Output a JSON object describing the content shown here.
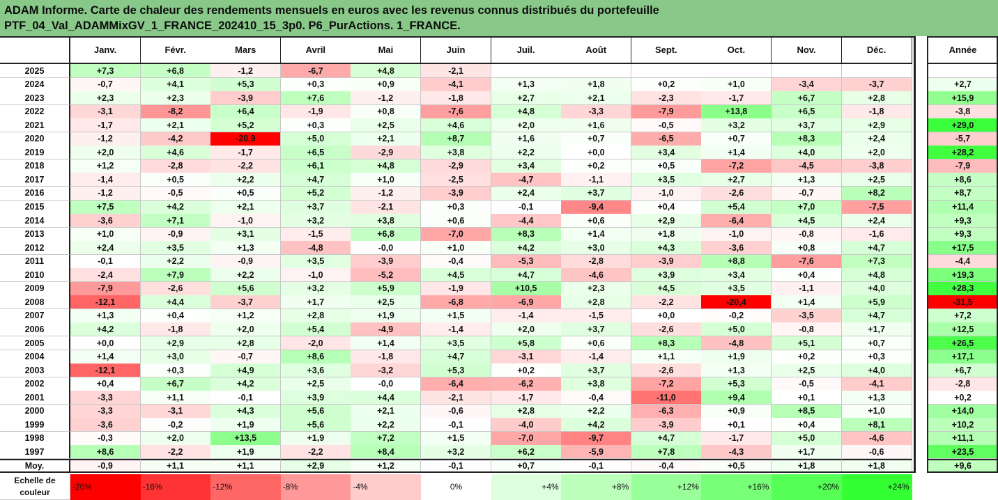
{
  "title_lines": [
    "ADAM Informe. Carte de chaleur des rendements mensuels en euros avec les revenus connus distribués du portefeuille",
    "PTF_04_Val_ADAMMixGV_1_FRANCE_202410_15_3p0. P6_PurActions. 1_FRANCE."
  ],
  "colors": {
    "title_bg": "#88c888",
    "negative_max": "#ff0000",
    "positive_max": "#33ff33",
    "neutral": "#ffffff"
  },
  "chart_data": {
    "type": "heatmap",
    "columns": [
      "Janv.",
      "Févr.",
      "Mars",
      "Avril",
      "Mai",
      "Juin",
      "Juil.",
      "Août",
      "Sept.",
      "Oct.",
      "Nov.",
      "Déc."
    ],
    "year_column": "Année",
    "rows": [
      {
        "year": "2025",
        "values": [
          "+7,3",
          "+6,8",
          "-1,2",
          "-6,7",
          "+4,8",
          "-2,1",
          "",
          "",
          "",
          "",
          "",
          ""
        ],
        "annual": ""
      },
      {
        "year": "2024",
        "values": [
          "-0,7",
          "+4,1",
          "+5,3",
          "+0,3",
          "+0,9",
          "-4,1",
          "+1,3",
          "+1,8",
          "+0,2",
          "+1,0",
          "-3,4",
          "-3,7"
        ],
        "annual": "+2,7"
      },
      {
        "year": "2023",
        "values": [
          "+2,3",
          "+2,3",
          "-3,9",
          "+7,6",
          "-1,2",
          "-1,8",
          "+2,7",
          "+2,1",
          "-2,3",
          "-1,7",
          "+6,7",
          "+2,8"
        ],
        "annual": "+15,9"
      },
      {
        "year": "2022",
        "values": [
          "-3,1",
          "-8,2",
          "+6,4",
          "-1,9",
          "+0,8",
          "-7,6",
          "+4,8",
          "-3,3",
          "-7,9",
          "+13,8",
          "+6,5",
          "-1,8"
        ],
        "annual": "-3,8"
      },
      {
        "year": "2021",
        "values": [
          "-1,7",
          "+2,1",
          "+5,2",
          "+0,3",
          "+2,5",
          "+4,6",
          "+2,0",
          "+1,6",
          "-0,5",
          "+3,2",
          "+3,7",
          "+2,9"
        ],
        "annual": "+29,0"
      },
      {
        "year": "2020",
        "values": [
          "-1,2",
          "-4,2",
          "-20,9",
          "+5,0",
          "+2,1",
          "+8,7",
          "+1,6",
          "+0,7",
          "-6,5",
          "+0,7",
          "+8,3",
          "+2,4"
        ],
        "annual": "-5,7"
      },
      {
        "year": "2019",
        "values": [
          "+2,0",
          "+4,6",
          "-1,7",
          "+6,5",
          "-2,9",
          "+3,8",
          "+2,2",
          "+0,0",
          "+3,4",
          "+1,4",
          "+4,0",
          "+2,0"
        ],
        "annual": "+28,2"
      },
      {
        "year": "2018",
        "values": [
          "+1,2",
          "-2,8",
          "-2,2",
          "+6,1",
          "+4,8",
          "-2,9",
          "+3,4",
          "+0,2",
          "+0,5",
          "-7,2",
          "-4,5",
          "-3,8"
        ],
        "annual": "-7,9"
      },
      {
        "year": "2017",
        "values": [
          "-1,4",
          "+0,5",
          "+2,2",
          "+4,7",
          "+1,0",
          "-2,5",
          "-4,7",
          "-1,1",
          "+3,5",
          "+2,7",
          "+1,3",
          "+2,5"
        ],
        "annual": "+8,6"
      },
      {
        "year": "2016",
        "values": [
          "-1,2",
          "-0,5",
          "+0,5",
          "+5,2",
          "-1,2",
          "-3,9",
          "+2,4",
          "+3,7",
          "-1,0",
          "-2,6",
          "-0,7",
          "+8,2"
        ],
        "annual": "+8,7"
      },
      {
        "year": "2015",
        "values": [
          "+7,5",
          "+4,2",
          "+2,1",
          "+3,7",
          "-2,1",
          "+0,3",
          "-0,1",
          "-9,4",
          "+0,4",
          "+5,4",
          "+7,0",
          "-7,5"
        ],
        "annual": "+11,4"
      },
      {
        "year": "2014",
        "values": [
          "-3,6",
          "+7,1",
          "-1,0",
          "+3,2",
          "+3,8",
          "+0,6",
          "-4,4",
          "+0,6",
          "+2,9",
          "-6,4",
          "+4,5",
          "+2,4"
        ],
        "annual": "+9,3"
      },
      {
        "year": "2013",
        "values": [
          "+1,0",
          "-0,9",
          "+3,1",
          "-1,5",
          "+6,8",
          "-7,0",
          "+8,3",
          "+1,4",
          "+1,8",
          "-1,0",
          "-0,8",
          "-1,6"
        ],
        "annual": "+9,3"
      },
      {
        "year": "2012",
        "values": [
          "+2,4",
          "+3,5",
          "+1,3",
          "-4,8",
          "-0,0",
          "+1,0",
          "+4,2",
          "+3,0",
          "+4,3",
          "-3,6",
          "+0,8",
          "+4,7"
        ],
        "annual": "+17,5"
      },
      {
        "year": "2011",
        "values": [
          "-0,1",
          "+2,2",
          "-0,9",
          "+3,5",
          "-3,9",
          "-0,4",
          "-5,3",
          "-2,8",
          "-3,9",
          "+8,8",
          "-7,6",
          "+7,3"
        ],
        "annual": "-4,4"
      },
      {
        "year": "2010",
        "values": [
          "-2,4",
          "+7,9",
          "+2,2",
          "-1,0",
          "-5,2",
          "+4,5",
          "+4,7",
          "-4,6",
          "+3,9",
          "+3,4",
          "+0,4",
          "+4,8"
        ],
        "annual": "+19,3"
      },
      {
        "year": "2009",
        "values": [
          "-7,9",
          "-2,6",
          "+5,6",
          "+3,2",
          "+5,9",
          "-1,9",
          "+10,5",
          "+2,3",
          "+4,5",
          "+3,5",
          "-1,1",
          "+4,0"
        ],
        "annual": "+28,3"
      },
      {
        "year": "2008",
        "values": [
          "-12,1",
          "+4,4",
          "-3,7",
          "+1,7",
          "+2,5",
          "-6,8",
          "-6,9",
          "+2,8",
          "-2,2",
          "-20,4",
          "+1,4",
          "+5,9"
        ],
        "annual": "-31,5"
      },
      {
        "year": "2007",
        "values": [
          "+1,3",
          "+0,4",
          "+1,2",
          "+2,8",
          "+1,9",
          "+1,5",
          "-1,4",
          "-1,5",
          "+0,0",
          "-0,2",
          "-3,5",
          "+4,7"
        ],
        "annual": "+7,2"
      },
      {
        "year": "2006",
        "values": [
          "+4,2",
          "-1,8",
          "+2,0",
          "+5,4",
          "-4,9",
          "-1,4",
          "+2,0",
          "+3,7",
          "-2,6",
          "+5,0",
          "-0,8",
          "+1,7"
        ],
        "annual": "+12,5"
      },
      {
        "year": "2005",
        "values": [
          "+0,0",
          "+2,9",
          "+2,8",
          "-2,0",
          "+1,4",
          "+3,5",
          "+5,8",
          "+0,6",
          "+8,3",
          "-4,8",
          "+5,1",
          "+0,7"
        ],
        "annual": "+26,5"
      },
      {
        "year": "2004",
        "values": [
          "+1,4",
          "+3,0",
          "-0,7",
          "+8,6",
          "-1,8",
          "+4,7",
          "-3,1",
          "-1,4",
          "+1,1",
          "+1,9",
          "+0,2",
          "+0,3"
        ],
        "annual": "+17,1"
      },
      {
        "year": "2003",
        "values": [
          "-12,1",
          "+0,3",
          "+4,9",
          "+3,6",
          "-3,2",
          "+5,3",
          "+0,2",
          "+3,7",
          "-2,6",
          "+1,3",
          "+2,5",
          "+4,0"
        ],
        "annual": "+6,7"
      },
      {
        "year": "2002",
        "values": [
          "+0,4",
          "+6,7",
          "+4,2",
          "+2,5",
          "-0,0",
          "-6,4",
          "-6,2",
          "+3,8",
          "-7,2",
          "+5,3",
          "-0,5",
          "-4,1"
        ],
        "annual": "-2,8"
      },
      {
        "year": "2001",
        "values": [
          "-3,3",
          "+1,1",
          "-0,1",
          "+3,9",
          "+4,4",
          "-2,1",
          "-1,7",
          "-0,4",
          "-11,0",
          "+9,4",
          "+0,1",
          "+1,3"
        ],
        "annual": "+0,2"
      },
      {
        "year": "2000",
        "values": [
          "-3,3",
          "-3,1",
          "+4,3",
          "+5,6",
          "+2,1",
          "-0,6",
          "+2,8",
          "+2,2",
          "-6,3",
          "+0,9",
          "+8,5",
          "+1,0"
        ],
        "annual": "+14,0"
      },
      {
        "year": "1999",
        "values": [
          "-3,6",
          "-0,2",
          "+1,9",
          "+5,6",
          "+2,2",
          "-0,1",
          "-4,0",
          "+4,2",
          "-3,9",
          "+0,1",
          "+0,4",
          "+8,1"
        ],
        "annual": "+10,2"
      },
      {
        "year": "1998",
        "values": [
          "-0,3",
          "+2,0",
          "+13,5",
          "+1,9",
          "+7,2",
          "+1,5",
          "-7,0",
          "-9,7",
          "+4,7",
          "-1,7",
          "+5,0",
          "-4,6"
        ],
        "annual": "+11,1"
      },
      {
        "year": "1997",
        "values": [
          "+8,6",
          "-2,2",
          "+1,9",
          "-2,2",
          "+8,4",
          "+3,2",
          "+6,2",
          "-5,9",
          "+7,8",
          "-4,3",
          "+1,7",
          "-0,6"
        ],
        "annual": "+23,5"
      }
    ],
    "average": {
      "label": "Moy.",
      "values": [
        "-0,9",
        "+1,1",
        "+1,1",
        "+2,9",
        "+1,2",
        "-0,1",
        "+0,7",
        "-0,1",
        "-0,4",
        "+0,5",
        "+1,8",
        "+1,8"
      ],
      "annual": "+9,6"
    },
    "scale": {
      "label_lines": [
        "Echelle de",
        "couleur"
      ],
      "stops": [
        "-20%",
        "-16%",
        "-12%",
        "-8%",
        "-4%",
        "0%",
        "+4%",
        "+8%",
        "+12%",
        "+16%",
        "+20%",
        "+24%"
      ],
      "stop_values": [
        -20,
        -16,
        -12,
        -8,
        -4,
        0,
        4,
        8,
        12,
        16,
        20,
        24
      ]
    }
  }
}
